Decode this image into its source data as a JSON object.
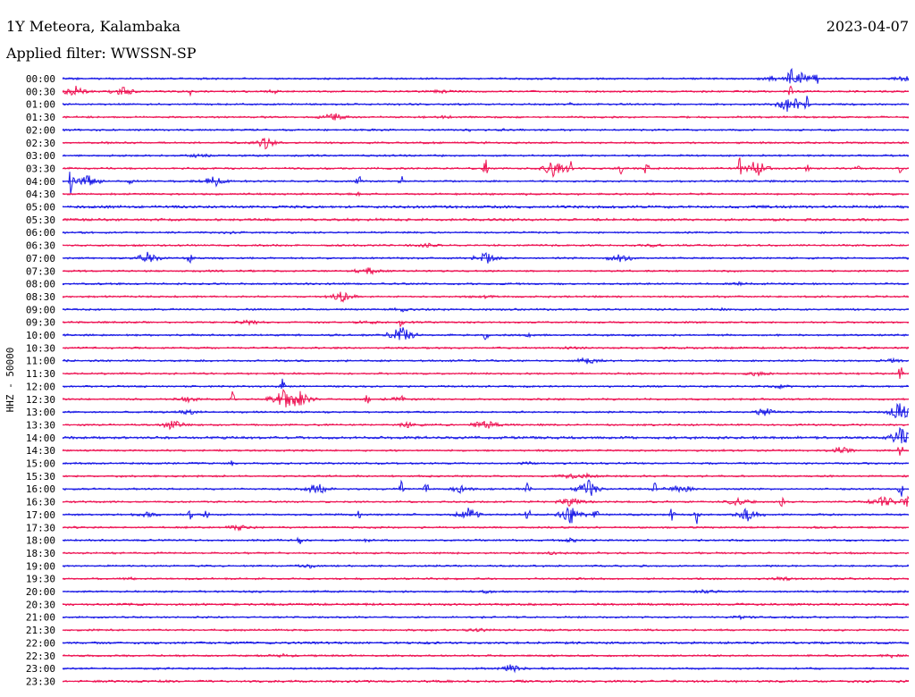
{
  "header": {
    "station": "1Y Meteora, Kalambaka",
    "date": "2023-04-07",
    "filter": "Applied filter: WWSSN-SP"
  },
  "chart_data": {
    "type": "line",
    "title": "1Y Meteora, Kalambaka",
    "ylabel": "HHZ - 50000",
    "xlabel": "",
    "colors": [
      "#1a1ae6",
      "#ee1555"
    ],
    "rows": [
      {
        "label": "00:00",
        "events": [
          [
            0.86,
            1.0,
            "spike"
          ],
          [
            0.84,
            0.3,
            "burst"
          ],
          [
            0.875,
            0.7,
            "burst"
          ],
          [
            0.89,
            0.8,
            "spike"
          ],
          [
            0.995,
            0.25,
            "burst"
          ]
        ]
      },
      {
        "label": "00:30",
        "events": [
          [
            0.015,
            0.55,
            "burst"
          ],
          [
            0.07,
            0.5,
            "burst"
          ],
          [
            0.15,
            0.4,
            "spike"
          ],
          [
            0.25,
            0.12,
            "burst"
          ],
          [
            0.45,
            0.1,
            "burst"
          ],
          [
            0.86,
            0.4,
            "spike"
          ]
        ]
      },
      {
        "label": "01:00",
        "events": [
          [
            0.86,
            1.0,
            "burst"
          ],
          [
            0.88,
            0.5,
            "spike"
          ],
          [
            0.6,
            0.08,
            "spike"
          ]
        ]
      },
      {
        "label": "01:30",
        "events": [
          [
            0.32,
            0.45,
            "burst"
          ],
          [
            0.45,
            0.1,
            "burst"
          ]
        ]
      },
      {
        "label": "02:00",
        "events": [
          [
            0.48,
            0.1,
            "spike"
          ],
          [
            0.52,
            0.08,
            "spike"
          ]
        ]
      },
      {
        "label": "02:30",
        "events": [
          [
            0.24,
            0.55,
            "burst"
          ],
          [
            0.5,
            0.1,
            "spike"
          ]
        ]
      },
      {
        "label": "03:00",
        "events": [
          [
            0.16,
            0.15,
            "burst"
          ]
        ]
      },
      {
        "label": "03:30",
        "events": [
          [
            0.5,
            0.6,
            "spike"
          ],
          [
            0.58,
            0.9,
            "burst"
          ],
          [
            0.6,
            0.7,
            "spike"
          ],
          [
            0.66,
            0.5,
            "spike"
          ],
          [
            0.69,
            0.5,
            "spike"
          ],
          [
            0.8,
            0.7,
            "spike"
          ],
          [
            0.82,
            0.9,
            "burst"
          ],
          [
            0.88,
            0.3,
            "spike"
          ],
          [
            0.94,
            0.3,
            "spike"
          ],
          [
            0.99,
            0.5,
            "spike"
          ]
        ]
      },
      {
        "label": "04:00",
        "events": [
          [
            0.01,
            1.0,
            "spike"
          ],
          [
            0.03,
            0.6,
            "burst"
          ],
          [
            0.18,
            0.6,
            "burst"
          ],
          [
            0.35,
            0.6,
            "spike"
          ],
          [
            0.4,
            0.5,
            "spike"
          ],
          [
            0.08,
            0.2,
            "spike"
          ]
        ]
      },
      {
        "label": "04:30",
        "events": [
          [
            0.35,
            0.1,
            "spike"
          ],
          [
            0.55,
            0.1,
            "spike"
          ]
        ]
      },
      {
        "label": "05:00",
        "events": [
          [
            0.02,
            0.1,
            "noise"
          ]
        ]
      },
      {
        "label": "05:30",
        "events": [
          [
            0.5,
            0.08,
            "noise"
          ]
        ]
      },
      {
        "label": "06:00",
        "events": [
          [
            0.2,
            0.12,
            "burst"
          ]
        ]
      },
      {
        "label": "06:30",
        "events": [
          [
            0.43,
            0.15,
            "burst"
          ],
          [
            0.7,
            0.1,
            "burst"
          ]
        ]
      },
      {
        "label": "07:00",
        "events": [
          [
            0.1,
            0.6,
            "burst"
          ],
          [
            0.15,
            0.4,
            "spike"
          ],
          [
            0.5,
            0.6,
            "burst"
          ],
          [
            0.66,
            0.5,
            "burst"
          ]
        ]
      },
      {
        "label": "07:30",
        "events": [
          [
            0.36,
            0.4,
            "burst"
          ]
        ]
      },
      {
        "label": "08:00",
        "events": [
          [
            0.8,
            0.12,
            "burst"
          ]
        ]
      },
      {
        "label": "08:30",
        "events": [
          [
            0.33,
            0.5,
            "burst"
          ],
          [
            0.5,
            0.12,
            "burst"
          ]
        ]
      },
      {
        "label": "09:00",
        "events": [
          [
            0.4,
            0.2,
            "burst"
          ],
          [
            0.78,
            0.12,
            "spike"
          ]
        ]
      },
      {
        "label": "09:30",
        "events": [
          [
            0.22,
            0.2,
            "burst"
          ],
          [
            0.36,
            0.15,
            "burst"
          ],
          [
            0.4,
            0.4,
            "spike"
          ]
        ]
      },
      {
        "label": "10:00",
        "events": [
          [
            0.4,
            1.0,
            "burst"
          ],
          [
            0.5,
            0.4,
            "spike"
          ],
          [
            0.55,
            0.3,
            "spike"
          ]
        ]
      },
      {
        "label": "10:30",
        "events": [
          [
            0.6,
            0.1,
            "burst"
          ]
        ]
      },
      {
        "label": "11:00",
        "events": [
          [
            0.62,
            0.3,
            "burst"
          ],
          [
            0.98,
            0.15,
            "burst"
          ]
        ]
      },
      {
        "label": "11:30",
        "events": [
          [
            0.82,
            0.2,
            "burst"
          ],
          [
            0.99,
            0.8,
            "spike"
          ]
        ]
      },
      {
        "label": "12:00",
        "events": [
          [
            0.26,
            0.5,
            "spike"
          ],
          [
            0.85,
            0.15,
            "burst"
          ]
        ]
      },
      {
        "label": "12:30",
        "events": [
          [
            0.15,
            0.3,
            "burst"
          ],
          [
            0.2,
            0.6,
            "spike"
          ],
          [
            0.26,
            0.9,
            "burst"
          ],
          [
            0.28,
            0.8,
            "burst"
          ],
          [
            0.36,
            0.4,
            "spike"
          ],
          [
            0.4,
            0.3,
            "burst"
          ]
        ]
      },
      {
        "label": "13:00",
        "events": [
          [
            0.15,
            0.2,
            "burst"
          ],
          [
            0.83,
            0.35,
            "burst"
          ],
          [
            0.99,
            1.0,
            "burst"
          ]
        ]
      },
      {
        "label": "13:30",
        "events": [
          [
            0.13,
            0.5,
            "burst"
          ],
          [
            0.41,
            0.3,
            "burst"
          ],
          [
            0.5,
            0.6,
            "burst"
          ]
        ]
      },
      {
        "label": "14:00",
        "events": [
          [
            0.99,
            1.0,
            "burst"
          ],
          [
            0.22,
            0.1,
            "noise"
          ]
        ]
      },
      {
        "label": "14:30",
        "events": [
          [
            0.92,
            0.35,
            "burst"
          ],
          [
            0.99,
            0.6,
            "spike"
          ]
        ]
      },
      {
        "label": "15:00",
        "events": [
          [
            0.2,
            0.15,
            "spike"
          ],
          [
            0.55,
            0.1,
            "burst"
          ]
        ]
      },
      {
        "label": "15:30",
        "events": [
          [
            0.6,
            0.2,
            "burst"
          ],
          [
            0.62,
            0.15,
            "burst"
          ]
        ]
      },
      {
        "label": "16:00",
        "events": [
          [
            0.3,
            0.6,
            "burst"
          ],
          [
            0.4,
            0.6,
            "spike"
          ],
          [
            0.43,
            0.4,
            "spike"
          ],
          [
            0.47,
            0.3,
            "burst"
          ],
          [
            0.55,
            0.6,
            "spike"
          ],
          [
            0.62,
            1.0,
            "burst"
          ],
          [
            0.7,
            0.5,
            "spike"
          ],
          [
            0.73,
            0.6,
            "burst"
          ],
          [
            0.99,
            0.8,
            "spike"
          ]
        ]
      },
      {
        "label": "16:30",
        "events": [
          [
            0.6,
            0.5,
            "burst"
          ],
          [
            0.8,
            0.5,
            "burst"
          ],
          [
            0.85,
            0.4,
            "spike"
          ],
          [
            0.97,
            0.6,
            "burst"
          ],
          [
            1.0,
            0.5,
            "burst"
          ]
        ]
      },
      {
        "label": "17:00",
        "events": [
          [
            0.1,
            0.2,
            "burst"
          ],
          [
            0.15,
            0.6,
            "spike"
          ],
          [
            0.17,
            0.5,
            "spike"
          ],
          [
            0.35,
            0.3,
            "spike"
          ],
          [
            0.48,
            0.6,
            "burst"
          ],
          [
            0.55,
            0.6,
            "spike"
          ],
          [
            0.6,
            0.9,
            "burst"
          ],
          [
            0.63,
            0.6,
            "spike"
          ],
          [
            0.72,
            0.6,
            "spike"
          ],
          [
            0.75,
            0.6,
            "spike"
          ],
          [
            0.81,
            0.7,
            "burst"
          ]
        ]
      },
      {
        "label": "17:30",
        "events": [
          [
            0.21,
            0.3,
            "burst"
          ]
        ]
      },
      {
        "label": "18:00",
        "events": [
          [
            0.28,
            0.25,
            "spike"
          ],
          [
            0.36,
            0.15,
            "spike"
          ],
          [
            0.6,
            0.15,
            "burst"
          ]
        ]
      },
      {
        "label": "18:30",
        "events": [
          [
            0.58,
            0.1,
            "burst"
          ]
        ]
      },
      {
        "label": "19:00",
        "events": [
          [
            0.29,
            0.2,
            "burst"
          ]
        ]
      },
      {
        "label": "19:30",
        "events": [
          [
            0.08,
            0.1,
            "burst"
          ],
          [
            0.85,
            0.15,
            "burst"
          ]
        ]
      },
      {
        "label": "20:00",
        "events": [
          [
            0.5,
            0.12,
            "burst"
          ],
          [
            0.76,
            0.15,
            "burst"
          ]
        ]
      },
      {
        "label": "20:30",
        "events": [
          [
            0.5,
            0.05,
            "noise"
          ]
        ]
      },
      {
        "label": "21:00",
        "events": [
          [
            0.8,
            0.12,
            "burst"
          ]
        ]
      },
      {
        "label": "21:30",
        "events": [
          [
            0.49,
            0.15,
            "burst"
          ]
        ]
      },
      {
        "label": "22:00",
        "events": [
          [
            0.5,
            0.05,
            "noise"
          ]
        ]
      },
      {
        "label": "22:30",
        "events": [
          [
            0.26,
            0.12,
            "burst"
          ],
          [
            0.98,
            0.12,
            "burst"
          ]
        ]
      },
      {
        "label": "23:00",
        "events": [
          [
            0.53,
            0.4,
            "burst"
          ]
        ]
      },
      {
        "label": "23:30",
        "events": [
          [
            0.5,
            0.05,
            "noise"
          ]
        ]
      }
    ]
  }
}
